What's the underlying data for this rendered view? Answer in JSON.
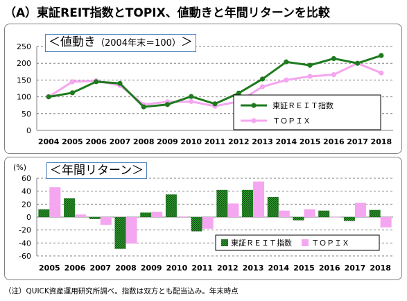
{
  "title": "（A）東証REIT指数とTOPIX、値動きと年間リターンを比較",
  "footnote": "（注）QUICK資産運用研究所調べ。指数は双方とも配当込み。年末時点",
  "colors": {
    "reit": "#1e7a1e",
    "topix": "#f5a6f0",
    "grid": "#7f7f7f",
    "panel_border": "#7f7f7f",
    "title_box": "#4f81bd"
  },
  "chart_data": [
    {
      "type": "line",
      "title": "＜値動き",
      "subtitle": "（2004年末＝100）",
      "title_end": "＞",
      "x": [
        "2004",
        "2005",
        "2006",
        "2007",
        "2008",
        "2009",
        "2010",
        "2011",
        "2012",
        "2013",
        "2014",
        "2015",
        "2016",
        "2017",
        "2018"
      ],
      "ylim": [
        0,
        250
      ],
      "yticks": [
        0,
        50,
        100,
        150,
        200,
        250
      ],
      "grid": true,
      "legend_position": "bottom-right",
      "series": [
        {
          "name": "東証ＲＥＩＴ指数",
          "values": [
            100,
            112,
            145,
            140,
            70,
            77,
            101,
            79,
            111,
            153,
            204,
            194,
            214,
            200,
            223
          ]
        },
        {
          "name": "ＴＯＰＩＸ",
          "values": [
            100,
            145,
            148,
            134,
            77,
            85,
            86,
            72,
            86,
            130,
            150,
            161,
            166,
            200,
            171
          ]
        }
      ]
    },
    {
      "type": "bar",
      "title": "＜年間リターン＞",
      "ylabel": "(%)",
      "categories": [
        "2005",
        "2006",
        "2007",
        "2008",
        "2009",
        "2010",
        "2011",
        "2012",
        "2013",
        "2014",
        "2015",
        "2016",
        "2017",
        "2018"
      ],
      "ylim": [
        -60,
        60
      ],
      "yticks": [
        -60,
        -40,
        -20,
        0,
        20,
        40,
        60
      ],
      "grid": true,
      "legend_position": "bottom-right",
      "series": [
        {
          "name": "東証ＲＥＩＴ指数",
          "values": [
            12,
            29,
            -3,
            -49,
            7,
            35,
            -22,
            42,
            42,
            31,
            -5,
            10,
            -6,
            11
          ]
        },
        {
          "name": "ＴＯＰＩＸ",
          "values": [
            46,
            4,
            -12,
            -41,
            8,
            1,
            -18,
            21,
            55,
            10,
            12,
            0.3,
            22,
            -16
          ]
        }
      ]
    }
  ]
}
